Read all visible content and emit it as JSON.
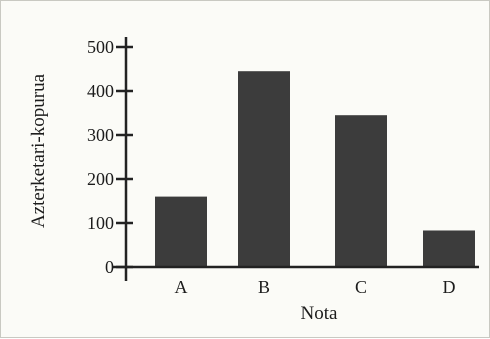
{
  "chart_data": {
    "type": "bar",
    "title": "",
    "xlabel": "Nota",
    "ylabel": "Azterketari-kopurua",
    "categories": [
      "A",
      "B",
      "C",
      "D"
    ],
    "values": [
      160,
      445,
      345,
      83
    ],
    "ylim": [
      0,
      500
    ],
    "yticks": [
      0,
      100,
      200,
      300,
      400,
      500
    ],
    "grid": false,
    "legend": "none",
    "bar_color": "#3c3c3c"
  }
}
